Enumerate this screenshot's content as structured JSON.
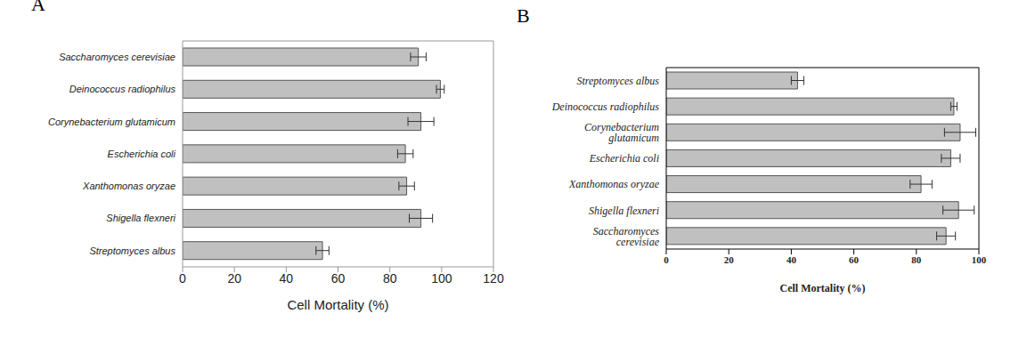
{
  "chart_data": [
    {
      "type": "bar",
      "title": "A",
      "orientation": "horizontal",
      "categories": [
        "Saccharomyces cerevisiae",
        "Deinococcus radiophilus",
        "Corynebacterium glutamicum",
        "Escherichia coli",
        "Xanthomonas oryzae",
        "Shigella flexneri",
        "Streptomyces albus"
      ],
      "values": [
        91,
        99.5,
        92,
        86,
        86.5,
        92,
        54
      ],
      "errors": [
        3,
        1.5,
        5,
        3,
        3,
        4.5,
        2.5
      ],
      "color": "#c0c0c0",
      "xlabel": "Cell Mortality (%)",
      "xlim": [
        0,
        120
      ],
      "xticks": [
        0,
        20,
        40,
        60,
        80,
        100,
        120
      ]
    },
    {
      "type": "bar",
      "title": "B",
      "orientation": "horizontal",
      "categories": [
        "Streptomyces albus",
        "Deinococcus radiophilus",
        "Corynebacterium glutamicum",
        "Escherichia coli",
        "Xanthomonas oryzae",
        "Shigella flexneri",
        "Saccharomyces cerevisiae"
      ],
      "values": [
        42,
        92,
        94,
        91,
        81.5,
        93.5,
        89.5
      ],
      "errors": [
        2,
        1,
        5,
        3,
        3.5,
        5,
        3
      ],
      "color": "#c0c0c0",
      "xlabel": "Cell Mortality (%)",
      "xlim": [
        0,
        100
      ],
      "xticks": [
        0,
        20,
        40,
        60,
        80,
        100
      ]
    }
  ]
}
